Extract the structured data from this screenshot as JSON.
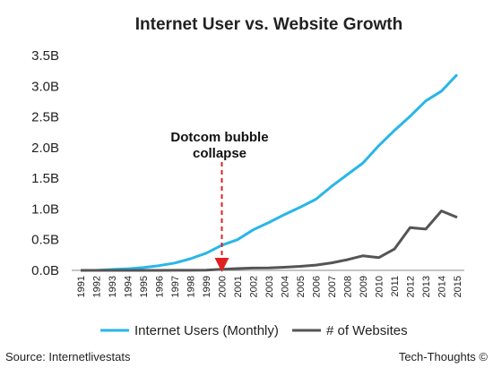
{
  "chart_data": {
    "type": "line",
    "title": "Internet User vs. Website Growth",
    "x": [
      "1991",
      "1992",
      "1993",
      "1994",
      "1995",
      "1996",
      "1997",
      "1998",
      "1999",
      "2000",
      "2001",
      "2002",
      "2003",
      "2004",
      "2005",
      "2006",
      "2007",
      "2008",
      "2009",
      "2010",
      "2011",
      "2012",
      "2013",
      "2014",
      "2015"
    ],
    "y_tick_labels": [
      "0.0B",
      "0.5B",
      "1.0B",
      "1.5B",
      "2.0B",
      "2.5B",
      "3.0B",
      "3.5B"
    ],
    "ylim": [
      0,
      3.5
    ],
    "grid": false,
    "legend_position": "bottom",
    "series": [
      {
        "name": "Internet Users (Monthly)",
        "color": "#29B6E8",
        "values": [
          0.0,
          0.0,
          0.014,
          0.025,
          0.045,
          0.077,
          0.12,
          0.19,
          0.28,
          0.41,
          0.5,
          0.66,
          0.78,
          0.91,
          1.03,
          1.16,
          1.37,
          1.56,
          1.75,
          2.03,
          2.28,
          2.51,
          2.76,
          2.92,
          3.19
        ]
      },
      {
        "name": "# of Websites",
        "color": "#555555",
        "values": [
          0.0,
          0.0,
          0.0,
          0.0,
          0.0,
          0.0,
          0.001,
          0.002,
          0.003,
          0.017,
          0.029,
          0.038,
          0.04,
          0.051,
          0.065,
          0.086,
          0.122,
          0.173,
          0.238,
          0.207,
          0.347,
          0.697,
          0.673,
          0.968,
          0.864
        ]
      }
    ],
    "annotation": {
      "lines": [
        "Dotcom bubble",
        "collapse"
      ],
      "x": "2000",
      "color": "#E02020"
    }
  },
  "footer": {
    "source": "Source: Internetlivestats",
    "credit": "Tech-Thoughts ©"
  }
}
